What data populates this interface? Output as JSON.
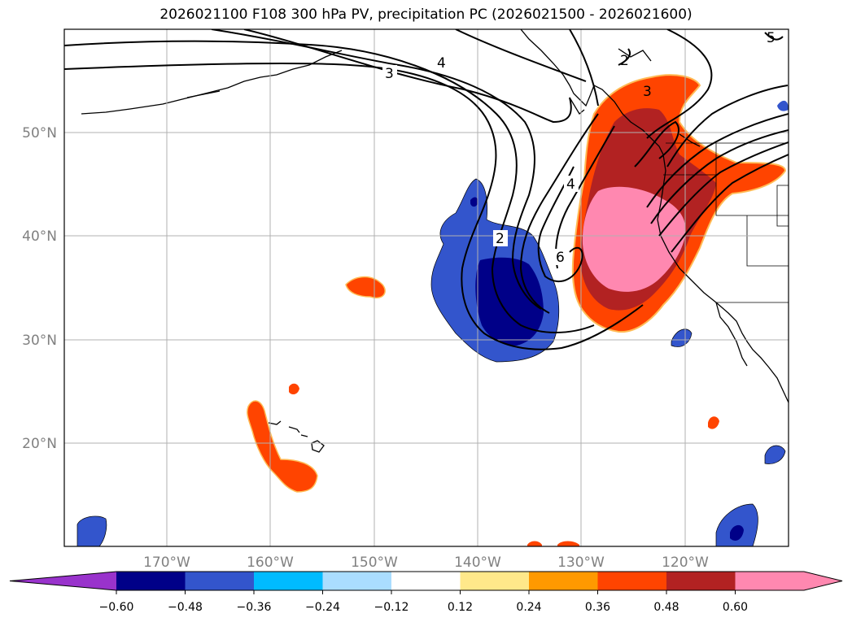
{
  "title": "2026021100 F108 300 hPa PV, precipitation PC (2026021500 - 2026021600)",
  "map": {
    "lat_labels": [
      "50°N",
      "40°N",
      "30°N",
      "20°N"
    ],
    "lon_labels": [
      "170°W",
      "160°W",
      "150°W",
      "140°W",
      "130°W",
      "120°W"
    ],
    "pv_contour_labels": [
      "3",
      "4",
      "2",
      "4",
      "6",
      "2",
      "3",
      "5"
    ]
  },
  "colorbar": {
    "ticks": [
      "−0.60",
      "−0.48",
      "−0.36",
      "−0.24",
      "−0.12",
      "0.12",
      "0.24",
      "0.36",
      "0.48",
      "0.60"
    ],
    "colors": [
      "#9933cc",
      "#000088",
      "#3355cc",
      "#00bbff",
      "#aaddff",
      "#ffffff",
      "#ffe88a",
      "#ff9900",
      "#ff4400",
      "#b22222",
      "#ff88b0",
      "#ff88b0"
    ]
  }
}
